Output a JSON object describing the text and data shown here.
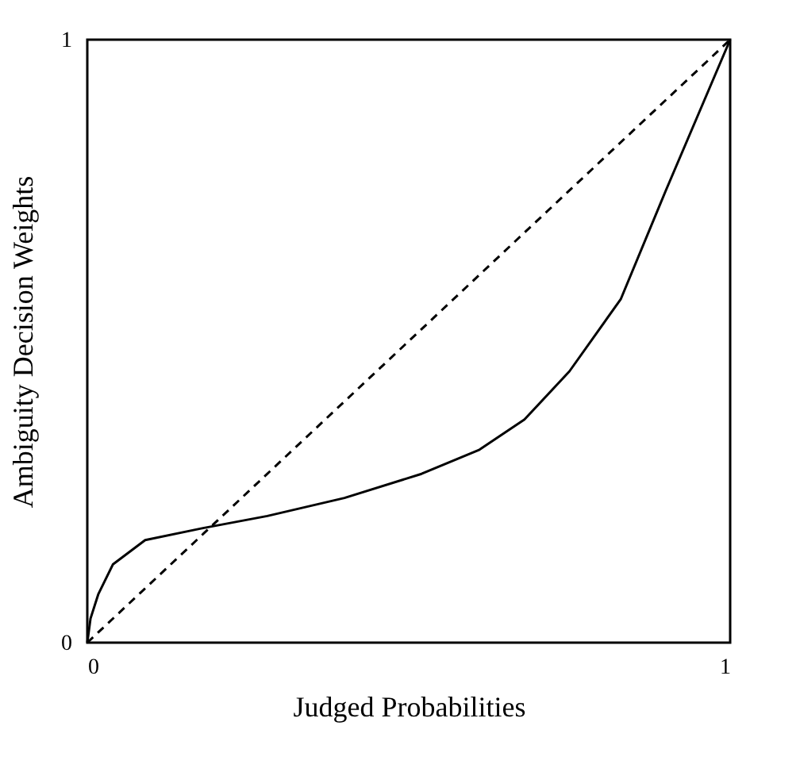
{
  "chart_data": {
    "type": "line",
    "xlabel": "Judged Probabilities",
    "ylabel": "Ambiguity Decision Weights",
    "xlim": [
      0,
      1
    ],
    "ylim": [
      0,
      1
    ],
    "xticks": [
      0,
      1
    ],
    "yticks": [
      0,
      1
    ],
    "grid": false,
    "series": [
      {
        "color": "#000000",
        "line_style": "solid",
        "x": [
          0,
          0.005,
          0.017,
          0.04,
          0.09,
          0.18,
          0.28,
          0.4,
          0.52,
          0.61,
          0.68,
          0.75,
          0.83,
          0.9,
          0.96,
          1
        ],
        "values": [
          0,
          0.04,
          0.08,
          0.13,
          0.17,
          0.19,
          0.21,
          0.24,
          0.28,
          0.32,
          0.37,
          0.45,
          0.57,
          0.75,
          0.9,
          1
        ]
      },
      {
        "color": "#000000",
        "line_style": "dashed",
        "x": [
          0,
          1
        ],
        "values": [
          0,
          1
        ]
      }
    ]
  }
}
